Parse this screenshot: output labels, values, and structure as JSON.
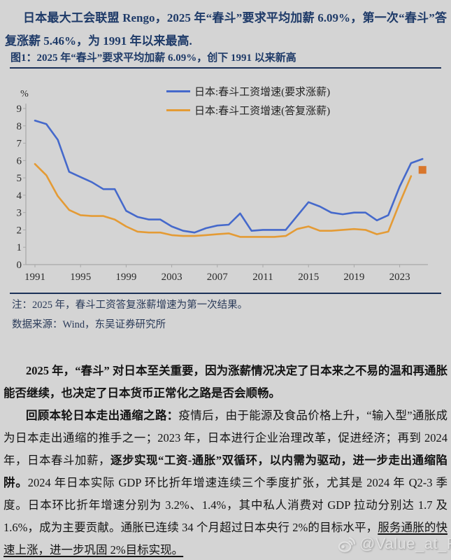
{
  "page": {
    "intro": "日本最大工会联盟 Rengo，2025 年“春斗”要求平均加薪 6.09%，第一次“春斗”答复涨薪 5.46%，为 1991 年以来最高.",
    "figure_caption": "图1：2025 年“春斗”要求平均加薪 6.09%，创下 1991 以来新高",
    "note_line1": "注：2025 年，春斗工资答复涨薪增速为第一次结果。",
    "note_line2": "数据来源：Wind，东吴证券研究所",
    "para1": "2025 年，“春斗” 对日本至关重要，因为涨薪情况决定了日本来之不易的温和再通胀能否继续，也决定了日本货币正常化之路是否会顺畅。",
    "para2": {
      "seg1_bold": "回顾本轮日本走出通缩之路：",
      "seg2": "疫情后，由于能源及食品价格上升，“输入型”通胀成为日本走出通缩的推手之一；2023 年，日本进行企业治理改革，促进经济；再到 2024 年，日本春斗加薪，",
      "seg3_bold": "逐步实现“工资-通胀”双循环，以内需为驱动，进一步走出通缩陷阱。",
      "seg4": "2024 年日本实际 GDP 环比折年增速连续三个季度扩张，尤其是 2024 年 Q2-3 季度。日本环比折年增速分别为 3.2%、1.4%，其中私人消费对 GDP 拉动分别达 1.7 及 1.6%，成为主要贡献。通胀已连续 34 个月超过日本央行 2%的目标水平，",
      "seg5_underline": "服务通胀的快速上涨，进一步巩固 2%目标实现。"
    },
    "watermark": "@Value_at_Risk"
  },
  "colors": {
    "page_background": "#d4d4d4",
    "heading_navy": "#1e3a68",
    "rule_navy": "#1c3158",
    "note_navy": "#2a3a58",
    "body_text": "#141414",
    "axis_gray": "#a8a8a8",
    "tick_label": "#2b2b2b",
    "line_blue": "#4569cb",
    "line_orange": "#e49b35",
    "marker_orange": "#d9772c",
    "watermark_gray": "#e3e3e3"
  },
  "chart_data": {
    "type": "line",
    "title": "图1：2025 年“春斗”要求平均加薪 6.09%，创下 1991 以来新高",
    "xlabel": "",
    "ylabel": "%",
    "ylim": [
      0,
      9
    ],
    "yticks": [
      0,
      1,
      2,
      3,
      4,
      5,
      6,
      7,
      8,
      9
    ],
    "xticks": [
      1991,
      1995,
      1999,
      2003,
      2007,
      2011,
      2015,
      2019,
      2023
    ],
    "grid": false,
    "legend_position": "top-right",
    "x": [
      1991,
      1992,
      1993,
      1994,
      1995,
      1996,
      1997,
      1998,
      1999,
      2000,
      2001,
      2002,
      2003,
      2004,
      2005,
      2006,
      2007,
      2008,
      2009,
      2010,
      2011,
      2012,
      2013,
      2014,
      2015,
      2016,
      2017,
      2018,
      2019,
      2020,
      2021,
      2022,
      2023,
      2024,
      2025
    ],
    "series": [
      {
        "name": "日本:春斗工资增速(要求涨薪)",
        "color": "#4569cb",
        "values": [
          8.3,
          8.1,
          7.2,
          5.35,
          5.05,
          4.75,
          4.35,
          4.35,
          3.1,
          2.75,
          2.6,
          2.6,
          2.2,
          1.95,
          1.85,
          2.1,
          2.25,
          2.3,
          2.95,
          1.95,
          2.0,
          2.0,
          2.0,
          2.8,
          3.6,
          3.35,
          3.0,
          2.9,
          3.0,
          3.0,
          2.55,
          2.85,
          4.5,
          5.85,
          6.09
        ]
      },
      {
        "name": "日本:春斗工资增速(答复涨薪)",
        "color": "#e49b35",
        "values": [
          5.8,
          5.15,
          3.95,
          3.15,
          2.85,
          2.8,
          2.8,
          2.6,
          2.2,
          1.9,
          1.85,
          1.85,
          1.7,
          1.65,
          1.65,
          1.7,
          1.75,
          1.8,
          1.6,
          1.6,
          1.6,
          1.6,
          1.65,
          2.05,
          2.2,
          1.95,
          1.95,
          2.0,
          2.05,
          2.0,
          1.75,
          1.9,
          3.55,
          5.1,
          null
        ]
      }
    ],
    "marker": {
      "series": "日本:春斗工资增速(答复涨薪)",
      "shape": "square",
      "x": 2025,
      "value": 5.46,
      "color": "#d9772c"
    }
  }
}
